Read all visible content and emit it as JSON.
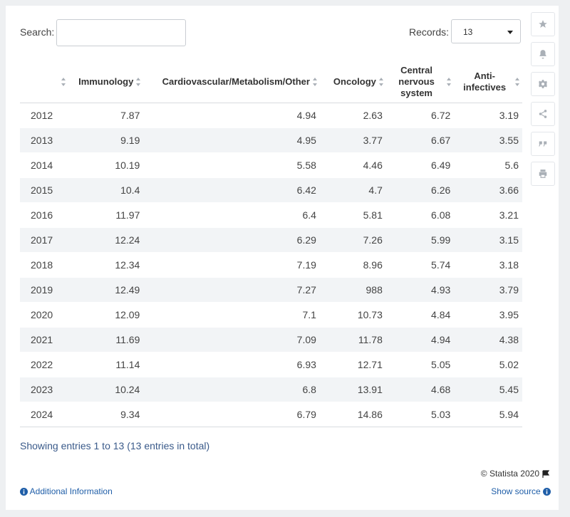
{
  "search": {
    "label": "Search:",
    "value": ""
  },
  "records": {
    "label": "Records:",
    "value": "13"
  },
  "side_buttons": [
    {
      "name": "favorite-button",
      "icon": "star-icon"
    },
    {
      "name": "notification-button",
      "icon": "bell-icon"
    },
    {
      "name": "settings-button",
      "icon": "gear-icon"
    },
    {
      "name": "share-button",
      "icon": "share-icon"
    },
    {
      "name": "cite-button",
      "icon": "quote-icon"
    },
    {
      "name": "print-button",
      "icon": "print-icon"
    }
  ],
  "chart_data": {
    "type": "table",
    "columns": [
      "",
      "Immunology",
      "Cardiovascular/Metabolism/Other",
      "Oncology",
      "Central nervous system",
      "Anti-infectives"
    ],
    "rows": [
      [
        "2012",
        "7.87",
        "4.94",
        "2.63",
        "6.72",
        "3.19"
      ],
      [
        "2013",
        "9.19",
        "4.95",
        "3.77",
        "6.67",
        "3.55"
      ],
      [
        "2014",
        "10.19",
        "5.58",
        "4.46",
        "6.49",
        "5.6"
      ],
      [
        "2015",
        "10.4",
        "6.42",
        "4.7",
        "6.26",
        "3.66"
      ],
      [
        "2016",
        "11.97",
        "6.4",
        "5.81",
        "6.08",
        "3.21"
      ],
      [
        "2017",
        "12.24",
        "6.29",
        "7.26",
        "5.99",
        "3.15"
      ],
      [
        "2018",
        "12.34",
        "7.19",
        "8.96",
        "5.74",
        "3.18"
      ],
      [
        "2019",
        "12.49",
        "7.27",
        "988",
        "4.93",
        "3.79"
      ],
      [
        "2020",
        "12.09",
        "7.1",
        "10.73",
        "4.84",
        "3.95"
      ],
      [
        "2021",
        "11.69",
        "7.09",
        "11.78",
        "4.94",
        "4.38"
      ],
      [
        "2022",
        "11.14",
        "6.93",
        "12.71",
        "5.05",
        "5.02"
      ],
      [
        "2023",
        "10.24",
        "6.8",
        "13.91",
        "4.68",
        "5.45"
      ],
      [
        "2024",
        "9.34",
        "6.79",
        "14.86",
        "5.03",
        "5.94"
      ]
    ]
  },
  "footer": {
    "showing": "Showing entries 1 to 13 (13 entries in total)",
    "credit": "© Statista 2020",
    "additional_info": "Additional Information",
    "show_source": "Show source"
  }
}
